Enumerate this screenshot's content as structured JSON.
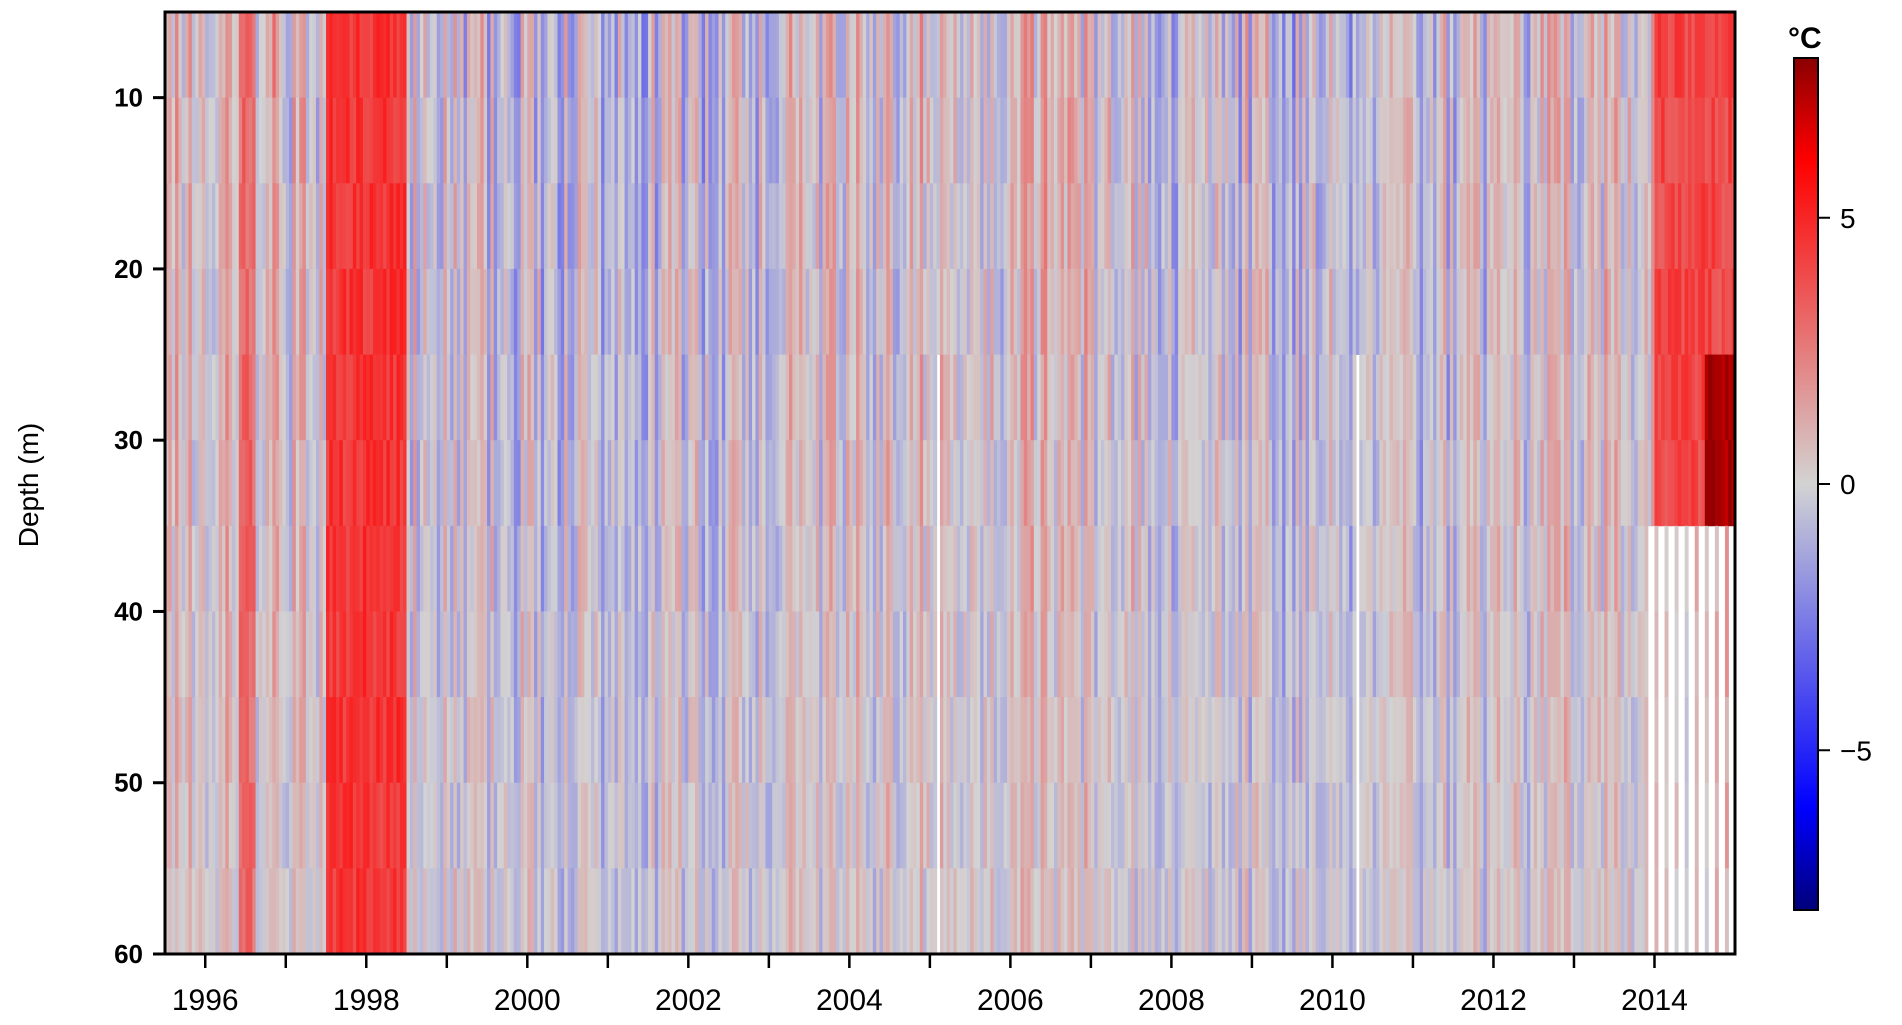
{
  "chart_data": {
    "type": "heatmap",
    "title": "",
    "xlabel": "",
    "ylabel": "Depth (m)",
    "x_range": [
      1995.5,
      2015.0
    ],
    "y_range": [
      5,
      60
    ],
    "y_inverted": true,
    "x_ticks": [
      1996,
      1998,
      2000,
      2002,
      2004,
      2006,
      2008,
      2010,
      2012,
      2014
    ],
    "x_minor_ticks": [
      1997,
      1999,
      2001,
      2003,
      2005,
      2007,
      2009,
      2011,
      2013
    ],
    "y_ticks": [
      10,
      20,
      30,
      40,
      50,
      60
    ],
    "depth_levels": [
      5,
      10,
      15,
      20,
      25,
      30,
      35,
      40,
      45,
      50,
      55,
      60
    ],
    "colorbar": {
      "unit": "°C",
      "range": [
        -8,
        8
      ],
      "ticks": [
        5,
        0,
        -5
      ],
      "tick_labels": [
        "5",
        "0",
        "−5"
      ],
      "colors": [
        "#00007a",
        "#0000ff",
        "#d3d3d3",
        "#ff0000",
        "#8b0000"
      ]
    },
    "warm_events": [
      {
        "start": 1997.5,
        "end": 1998.5,
        "anomaly": 4.5
      },
      {
        "start": 1996.4,
        "end": 1996.6,
        "anomaly": 3
      },
      {
        "start": 2014.0,
        "end": 2015.0,
        "anomaly": 4,
        "max_depth": 35
      }
    ],
    "missing_columns": [
      2005.1,
      2010.3
    ],
    "missing_deep_after": 2013.9
  }
}
